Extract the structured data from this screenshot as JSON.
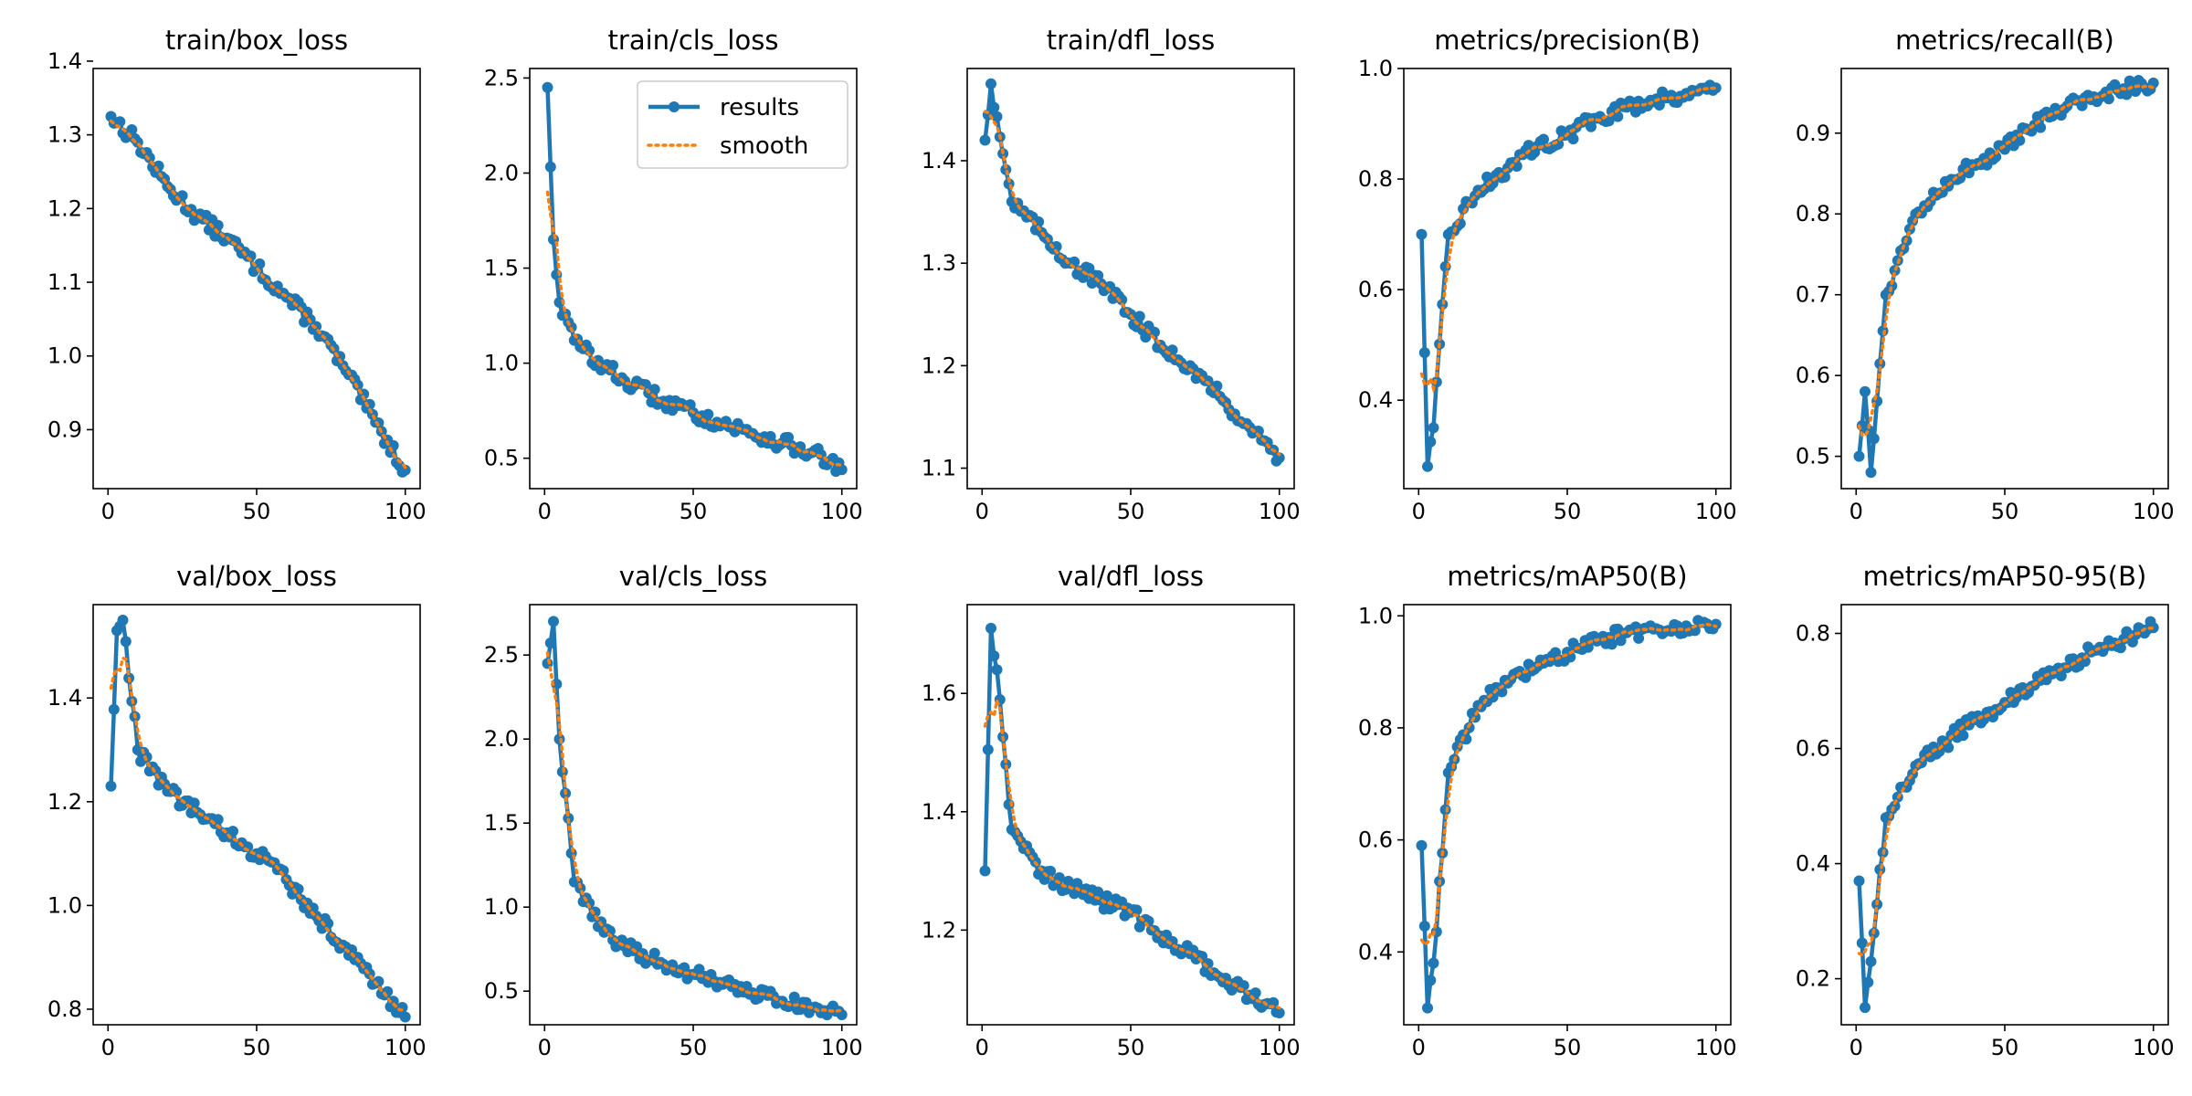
{
  "chart_data": [
    {
      "type": "line",
      "title": "train/box_loss",
      "xlabel": "",
      "ylabel": "",
      "xlim": [
        -5,
        105
      ],
      "ylim": [
        0.82,
        1.39
      ],
      "xticks": [
        0,
        50,
        100
      ],
      "yticks": [
        0.9,
        1.0,
        1.1,
        1.2,
        1.3,
        1.4
      ],
      "x": [
        1,
        10,
        20,
        30,
        40,
        50,
        60,
        70,
        80,
        90,
        100
      ],
      "y": [
        1.325,
        1.29,
        1.23,
        1.19,
        1.16,
        1.12,
        1.08,
        1.04,
        0.98,
        0.91,
        0.845
      ],
      "series": [
        {
          "name": "results"
        },
        {
          "name": "smooth"
        }
      ]
    },
    {
      "type": "line",
      "title": "train/cls_loss",
      "xlabel": "",
      "ylabel": "",
      "xlim": [
        -5,
        105
      ],
      "ylim": [
        0.34,
        2.55
      ],
      "xticks": [
        0,
        50,
        100
      ],
      "yticks": [
        0.5,
        1.0,
        1.5,
        2.0,
        2.5
      ],
      "x": [
        1,
        3,
        5,
        10,
        20,
        30,
        40,
        50,
        60,
        70,
        80,
        90,
        100
      ],
      "y": [
        2.45,
        1.65,
        1.32,
        1.12,
        0.98,
        0.88,
        0.8,
        0.74,
        0.68,
        0.63,
        0.58,
        0.53,
        0.44
      ],
      "series": [
        {
          "name": "results"
        },
        {
          "name": "smooth"
        }
      ]
    },
    {
      "type": "line",
      "title": "train/dfl_loss",
      "xlabel": "",
      "ylabel": "",
      "xlim": [
        -5,
        105
      ],
      "ylim": [
        1.08,
        1.49
      ],
      "xticks": [
        0,
        50,
        100
      ],
      "yticks": [
        1.1,
        1.2,
        1.3,
        1.4
      ],
      "x": [
        1,
        3,
        10,
        20,
        30,
        40,
        50,
        60,
        70,
        80,
        90,
        100
      ],
      "y": [
        1.42,
        1.475,
        1.36,
        1.33,
        1.3,
        1.28,
        1.25,
        1.22,
        1.2,
        1.17,
        1.14,
        1.11
      ],
      "series": [
        {
          "name": "results"
        },
        {
          "name": "smooth"
        }
      ]
    },
    {
      "type": "line",
      "title": "metrics/precision(B)",
      "xlabel": "",
      "ylabel": "",
      "xlim": [
        -5,
        105
      ],
      "ylim": [
        0.24,
        1.0
      ],
      "xticks": [
        0,
        50,
        100
      ],
      "yticks": [
        0.4,
        0.6,
        0.8,
        1.0
      ],
      "x": [
        1,
        3,
        5,
        10,
        20,
        30,
        40,
        50,
        60,
        70,
        80,
        90,
        100
      ],
      "y": [
        0.7,
        0.28,
        0.35,
        0.7,
        0.78,
        0.82,
        0.86,
        0.88,
        0.91,
        0.93,
        0.945,
        0.955,
        0.965
      ],
      "series": [
        {
          "name": "results"
        },
        {
          "name": "smooth"
        }
      ]
    },
    {
      "type": "line",
      "title": "metrics/recall(B)",
      "xlabel": "",
      "ylabel": "",
      "xlim": [
        -5,
        105
      ],
      "ylim": [
        0.46,
        0.98
      ],
      "xticks": [
        0,
        50,
        100
      ],
      "yticks": [
        0.5,
        0.6,
        0.7,
        0.8,
        0.9
      ],
      "x": [
        1,
        3,
        5,
        10,
        20,
        30,
        40,
        50,
        60,
        70,
        80,
        90,
        100
      ],
      "y": [
        0.5,
        0.58,
        0.48,
        0.7,
        0.8,
        0.84,
        0.86,
        0.88,
        0.91,
        0.93,
        0.945,
        0.955,
        0.962
      ],
      "series": [
        {
          "name": "results"
        },
        {
          "name": "smooth"
        }
      ]
    },
    {
      "type": "line",
      "title": "val/box_loss",
      "xlabel": "",
      "ylabel": "",
      "xlim": [
        -5,
        105
      ],
      "ylim": [
        0.77,
        1.58
      ],
      "xticks": [
        0,
        50,
        100
      ],
      "yticks": [
        0.8,
        1.0,
        1.2,
        1.4
      ],
      "x": [
        1,
        3,
        5,
        10,
        20,
        30,
        40,
        50,
        60,
        70,
        80,
        90,
        100
      ],
      "y": [
        1.23,
        1.53,
        1.55,
        1.3,
        1.22,
        1.18,
        1.14,
        1.1,
        1.05,
        0.98,
        0.92,
        0.85,
        0.785
      ],
      "series": [
        {
          "name": "results"
        },
        {
          "name": "smooth"
        }
      ]
    },
    {
      "type": "line",
      "title": "val/cls_loss",
      "xlabel": "",
      "ylabel": "",
      "xlim": [
        -5,
        105
      ],
      "ylim": [
        0.3,
        2.8
      ],
      "xticks": [
        0,
        50,
        100
      ],
      "yticks": [
        0.5,
        1.0,
        1.5,
        2.0,
        2.5
      ],
      "x": [
        1,
        3,
        5,
        10,
        20,
        30,
        40,
        50,
        60,
        70,
        80,
        90,
        100
      ],
      "y": [
        2.45,
        2.7,
        2.0,
        1.15,
        0.85,
        0.74,
        0.66,
        0.6,
        0.54,
        0.49,
        0.44,
        0.4,
        0.36
      ],
      "series": [
        {
          "name": "results"
        },
        {
          "name": "smooth"
        }
      ]
    },
    {
      "type": "line",
      "title": "val/dfl_loss",
      "xlabel": "",
      "ylabel": "",
      "xlim": [
        -5,
        105
      ],
      "ylim": [
        1.04,
        1.75
      ],
      "xticks": [
        0,
        50,
        100
      ],
      "yticks": [
        1.2,
        1.4,
        1.6
      ],
      "x": [
        1,
        3,
        5,
        10,
        20,
        30,
        40,
        50,
        60,
        70,
        80,
        90,
        100
      ],
      "y": [
        1.3,
        1.71,
        1.64,
        1.37,
        1.3,
        1.27,
        1.25,
        1.23,
        1.19,
        1.16,
        1.12,
        1.09,
        1.06
      ],
      "series": [
        {
          "name": "results"
        },
        {
          "name": "smooth"
        }
      ]
    },
    {
      "type": "line",
      "title": "metrics/mAP50(B)",
      "xlabel": "",
      "ylabel": "",
      "xlim": [
        -5,
        105
      ],
      "ylim": [
        0.27,
        1.02
      ],
      "xticks": [
        0,
        50,
        100
      ],
      "yticks": [
        0.4,
        0.6,
        0.8,
        1.0
      ],
      "x": [
        1,
        3,
        5,
        10,
        20,
        30,
        40,
        50,
        60,
        70,
        80,
        90,
        100
      ],
      "y": [
        0.59,
        0.3,
        0.38,
        0.72,
        0.84,
        0.88,
        0.91,
        0.935,
        0.955,
        0.97,
        0.977,
        0.982,
        0.985
      ],
      "series": [
        {
          "name": "results"
        },
        {
          "name": "smooth"
        }
      ]
    },
    {
      "type": "line",
      "title": "metrics/mAP50-95(B)",
      "xlabel": "",
      "ylabel": "",
      "xlim": [
        -5,
        105
      ],
      "ylim": [
        0.12,
        0.85
      ],
      "xticks": [
        0,
        50,
        100
      ],
      "yticks": [
        0.2,
        0.4,
        0.6,
        0.8
      ],
      "x": [
        1,
        3,
        5,
        10,
        20,
        30,
        40,
        50,
        60,
        70,
        80,
        90,
        100
      ],
      "y": [
        0.37,
        0.15,
        0.23,
        0.48,
        0.57,
        0.61,
        0.65,
        0.68,
        0.71,
        0.74,
        0.77,
        0.79,
        0.81
      ],
      "series": [
        {
          "name": "results"
        },
        {
          "name": "smooth"
        }
      ]
    }
  ],
  "legend": {
    "location": "upper right of train/cls_loss",
    "entries": [
      "results",
      "smooth"
    ]
  },
  "colors": {
    "results": "#1f77b4",
    "smooth": "#ff7f0e",
    "axes": "#000000",
    "background": "#ffffff"
  }
}
